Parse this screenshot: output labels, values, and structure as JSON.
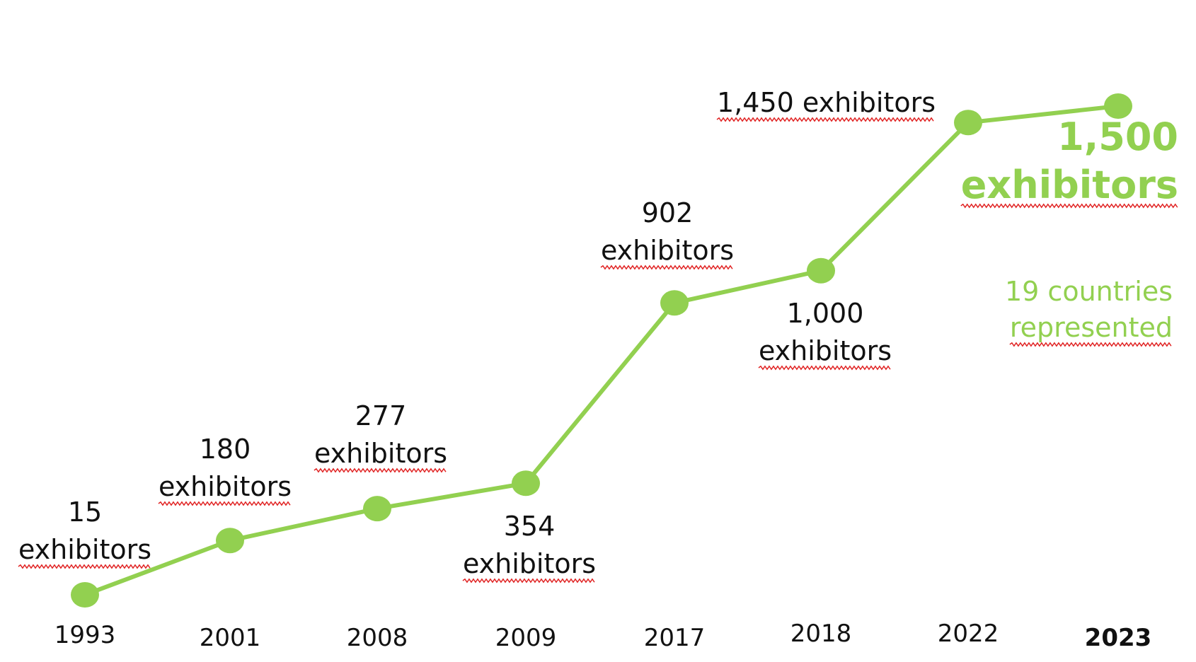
{
  "colors": {
    "series": "#92d050",
    "text": "#111111",
    "highlight": "#92d050",
    "spellcheck": "#e02020"
  },
  "chart_data": {
    "type": "line",
    "title": "",
    "xlabel": "",
    "ylabel": "",
    "categories": [
      "1993",
      "2001",
      "2008",
      "2009",
      "2017",
      "2018",
      "2022",
      "2023"
    ],
    "ylim": [
      0,
      1600
    ],
    "grid": false,
    "legend": "none",
    "series": [
      {
        "values": [
          15,
          180,
          277,
          354,
          902,
          1000,
          1450,
          1500
        ]
      }
    ],
    "data_labels": [
      [
        "15",
        "exhibitors"
      ],
      [
        "180",
        "exhibitors"
      ],
      [
        "277",
        "exhibitors"
      ],
      [
        "354",
        "exhibitors"
      ],
      [
        "902",
        "exhibitors"
      ],
      [
        "1,000",
        "exhibitors"
      ],
      [
        "1,450 exhibitors"
      ],
      [
        "1,500",
        "exhibitors"
      ]
    ],
    "highlight_category": "2023",
    "annotation": [
      "19 countries",
      "represented"
    ]
  }
}
